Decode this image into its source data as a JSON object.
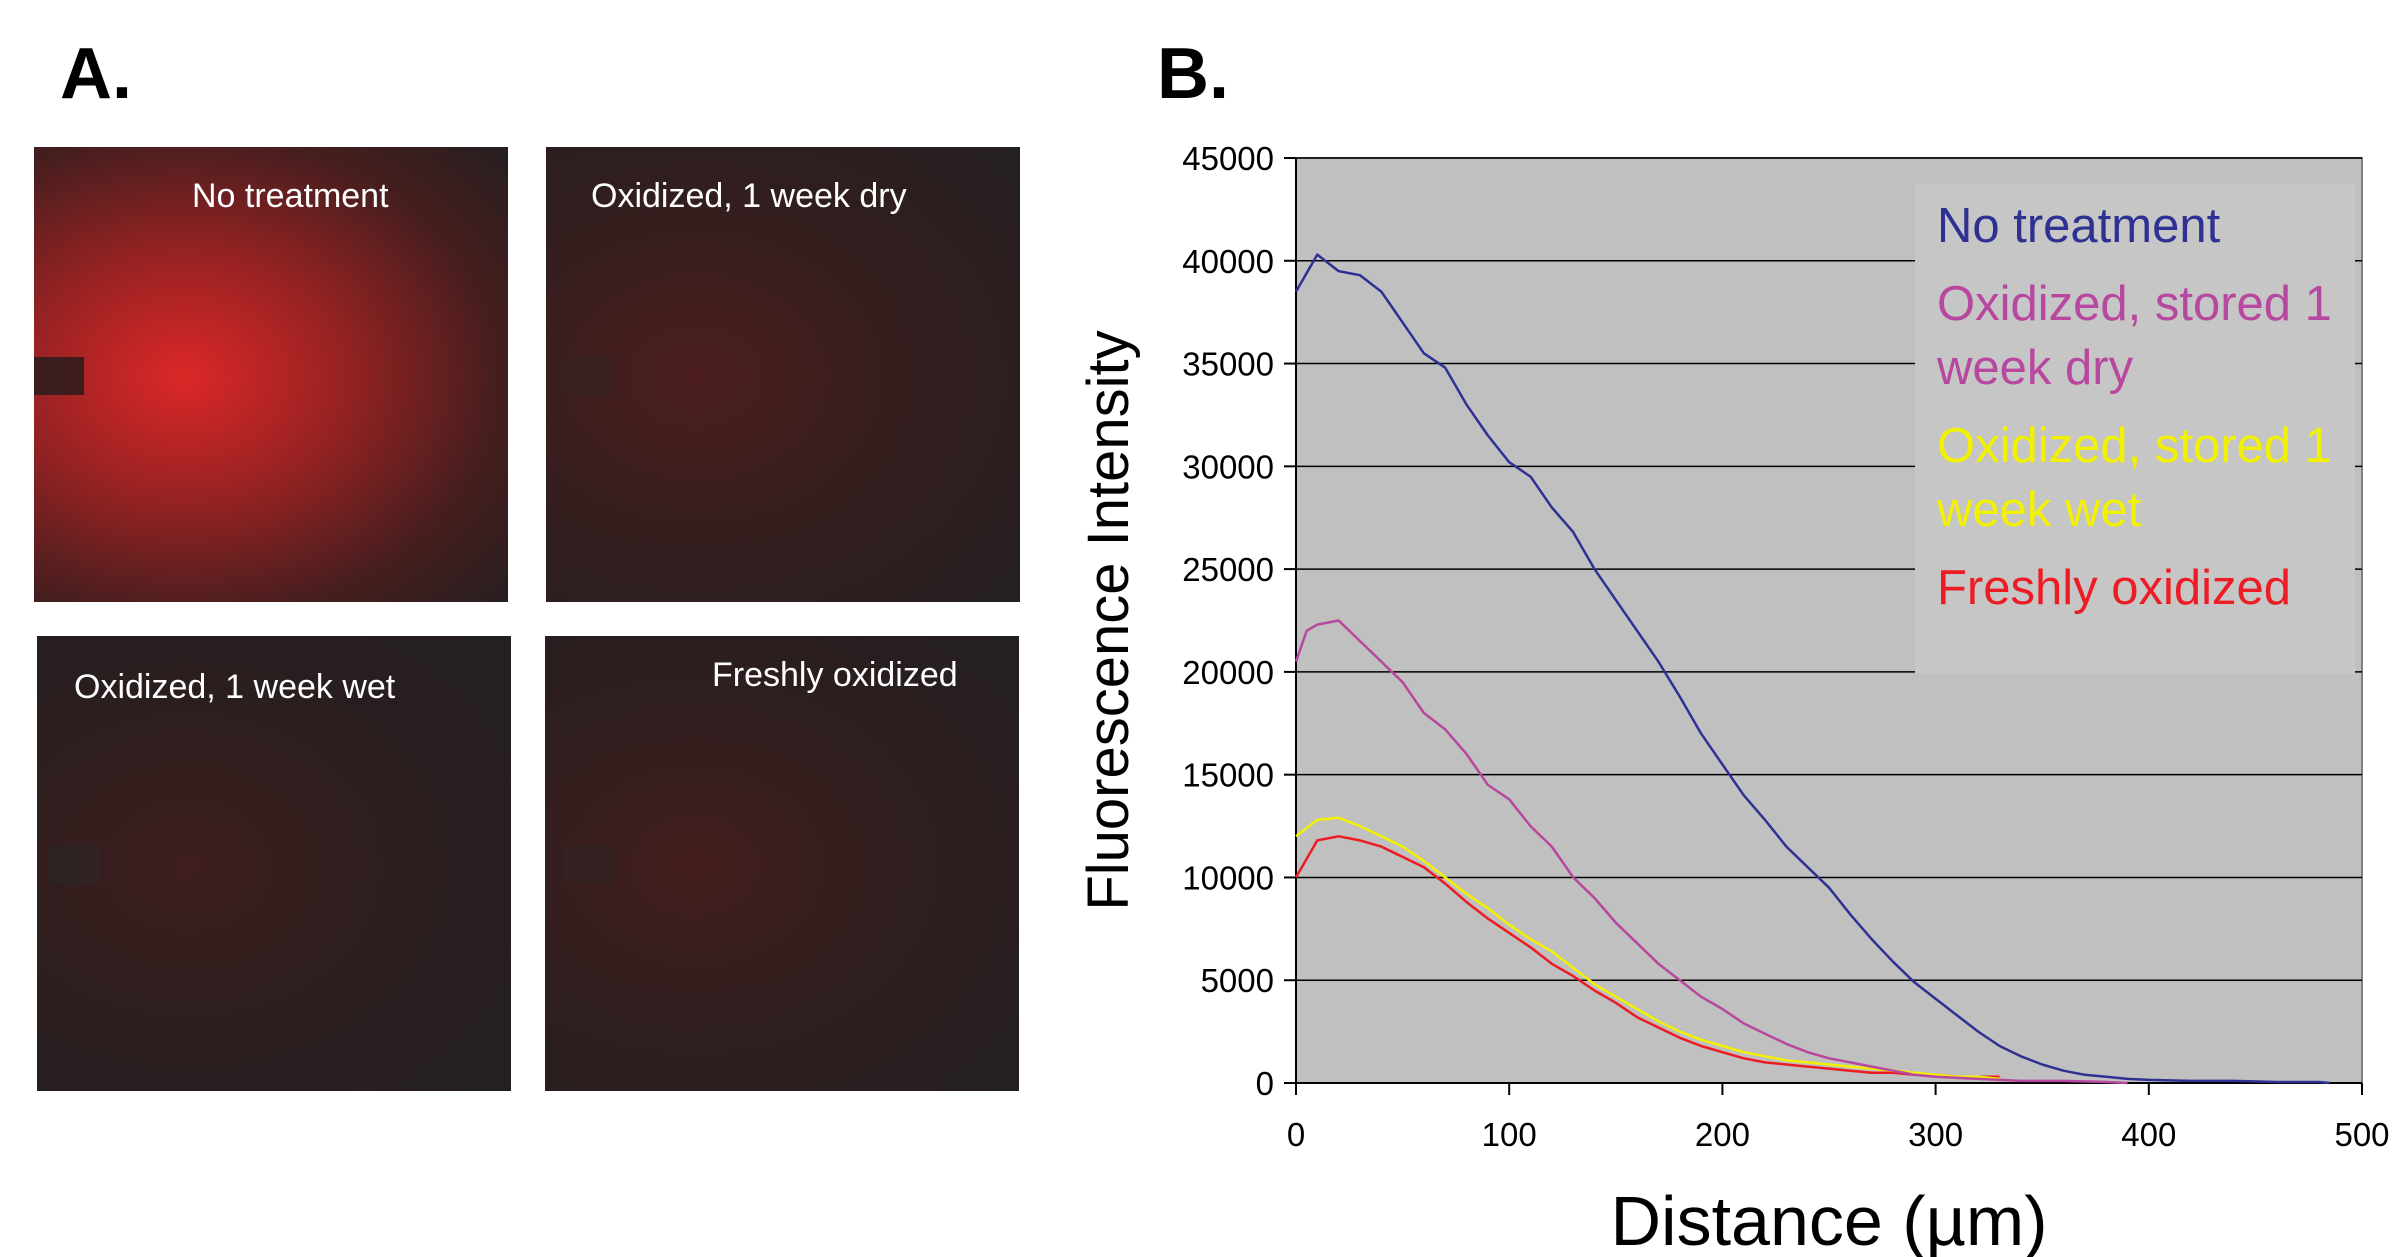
{
  "panels": {
    "a": {
      "label": "A.",
      "images": [
        "No treatment",
        "Oxidized, 1 week dry",
        "Oxidized, 1 week wet",
        "Freshly oxidized"
      ]
    },
    "b": {
      "label": "B."
    }
  },
  "chart_data": {
    "type": "line",
    "x_label": "Distance (µm)",
    "y_label": "Fluorescence Intensity",
    "xlim": [
      0,
      500
    ],
    "xticks": [
      0,
      100,
      200,
      300,
      400,
      500
    ],
    "ylim": [
      0,
      45000
    ],
    "yticks": [
      0,
      5000,
      10000,
      15000,
      20000,
      25000,
      30000,
      35000,
      40000,
      45000
    ],
    "grid": true,
    "legend": "upper right",
    "background": "#c0c0c0",
    "series": [
      {
        "name": "No treatment",
        "color": "#2e3192",
        "x": [
          0,
          10,
          20,
          30,
          40,
          50,
          60,
          70,
          80,
          90,
          100,
          110,
          120,
          130,
          140,
          150,
          160,
          170,
          180,
          190,
          200,
          210,
          220,
          230,
          240,
          250,
          260,
          270,
          280,
          290,
          300,
          310,
          320,
          330,
          340,
          350,
          360,
          370,
          380,
          390,
          400,
          420,
          440,
          460,
          480,
          485
        ],
        "values": [
          38500,
          40300,
          39500,
          39300,
          38500,
          37000,
          35500,
          34800,
          33000,
          31500,
          30200,
          29500,
          28000,
          26800,
          25000,
          23500,
          22000,
          20500,
          18800,
          17000,
          15500,
          14000,
          12800,
          11500,
          10500,
          9500,
          8200,
          7000,
          5900,
          4900,
          4100,
          3300,
          2500,
          1800,
          1300,
          900,
          600,
          400,
          300,
          200,
          150,
          100,
          100,
          50,
          50,
          0
        ]
      },
      {
        "name": "Oxidized, stored 1 week dry",
        "color": "#b7479f",
        "x": [
          0,
          5,
          10,
          20,
          30,
          40,
          50,
          60,
          70,
          80,
          90,
          100,
          110,
          120,
          130,
          140,
          150,
          160,
          170,
          180,
          190,
          200,
          210,
          220,
          230,
          240,
          250,
          260,
          270,
          280,
          290,
          300,
          320,
          340,
          360,
          380,
          390
        ],
        "values": [
          20500,
          22000,
          22300,
          22500,
          21500,
          20500,
          19500,
          18000,
          17200,
          16000,
          14500,
          13800,
          12500,
          11500,
          10000,
          9000,
          7800,
          6800,
          5800,
          5000,
          4200,
          3600,
          2900,
          2400,
          1900,
          1500,
          1200,
          1000,
          800,
          600,
          400,
          300,
          200,
          100,
          100,
          50,
          0
        ]
      },
      {
        "name": "Oxidized, stored 1 week wet",
        "color": "#f2f200",
        "x": [
          0,
          10,
          20,
          30,
          40,
          50,
          60,
          70,
          80,
          90,
          100,
          110,
          120,
          130,
          140,
          150,
          160,
          170,
          180,
          190,
          200,
          210,
          220,
          230,
          240,
          250,
          260,
          270,
          280,
          290,
          300,
          310,
          320,
          330
        ],
        "values": [
          12000,
          12800,
          12900,
          12500,
          12000,
          11500,
          10800,
          10000,
          9200,
          8500,
          7700,
          7000,
          6400,
          5600,
          4800,
          4200,
          3600,
          3000,
          2500,
          2100,
          1800,
          1500,
          1300,
          1100,
          1000,
          900,
          800,
          700,
          600,
          500,
          400,
          300,
          300,
          200
        ]
      },
      {
        "name": "Freshly oxidized",
        "color": "#ed1c24",
        "x": [
          0,
          10,
          20,
          30,
          40,
          50,
          60,
          70,
          80,
          90,
          100,
          110,
          120,
          130,
          140,
          150,
          160,
          170,
          180,
          190,
          200,
          210,
          220,
          230,
          240,
          250,
          260,
          270,
          280,
          290,
          300,
          310,
          320,
          330
        ],
        "values": [
          10000,
          11800,
          12000,
          11800,
          11500,
          11000,
          10500,
          9700,
          8800,
          8000,
          7300,
          6600,
          5800,
          5200,
          4500,
          3900,
          3200,
          2700,
          2200,
          1800,
          1500,
          1200,
          1000,
          900,
          800,
          700,
          600,
          500,
          500,
          400,
          400,
          300,
          300,
          300
        ]
      }
    ]
  }
}
